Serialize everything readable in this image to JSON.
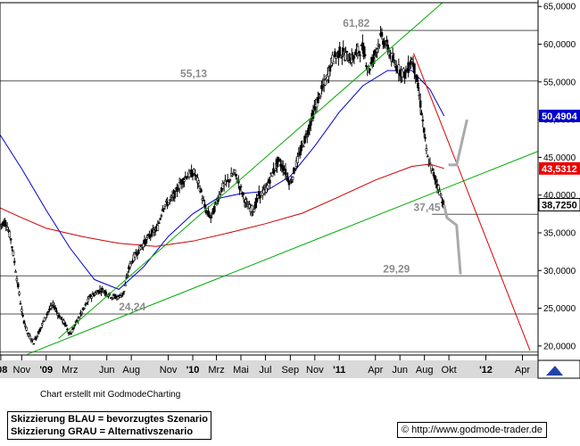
{
  "chart_data": {
    "type": "line",
    "title": "",
    "xlabel": "",
    "ylabel": "",
    "ylim": [
      18800,
      65500
    ],
    "xlim": [
      "2008-09-08",
      "2012-05-10"
    ],
    "y_axis_side": "right",
    "y_ticks": [
      "65,0000",
      "60,0000",
      "55,0000",
      "50,0000",
      "45,0000",
      "40,0000",
      "35,0000",
      "30,0000",
      "25,0000",
      "20,0000"
    ],
    "y_tick_values": [
      65000,
      60000,
      55000,
      50000,
      45000,
      40000,
      35000,
      30000,
      25000,
      20000
    ],
    "x_tick_labels": [
      {
        "label": "'08",
        "date": "2008-09-10",
        "bold": true
      },
      {
        "label": "Nov",
        "date": "2008-11-01"
      },
      {
        "label": "'09",
        "date": "2009-01-01",
        "bold": true
      },
      {
        "label": "Mrz",
        "date": "2009-03-01"
      },
      {
        "label": "Jun",
        "date": "2009-06-01"
      },
      {
        "label": "Aug",
        "date": "2009-08-01"
      },
      {
        "label": "Nov",
        "date": "2009-11-01"
      },
      {
        "label": "'10",
        "date": "2010-01-01",
        "bold": true
      },
      {
        "label": "Mrz",
        "date": "2010-03-01"
      },
      {
        "label": "Mai",
        "date": "2010-05-01"
      },
      {
        "label": "Jul",
        "date": "2010-07-01"
      },
      {
        "label": "Sep",
        "date": "2010-09-01"
      },
      {
        "label": "Nov",
        "date": "2010-11-01"
      },
      {
        "label": "'11",
        "date": "2011-01-01",
        "bold": true
      },
      {
        "label": "Apr",
        "date": "2011-04-01"
      },
      {
        "label": "Jun",
        "date": "2011-06-01"
      },
      {
        "label": "Aug",
        "date": "2011-08-01"
      },
      {
        "label": "Okt",
        "date": "2011-10-01"
      },
      {
        "label": "'12",
        "date": "2012-01-01",
        "bold": true
      },
      {
        "label": "Apr",
        "date": "2012-04-01"
      }
    ],
    "horizontal_levels": [
      {
        "label": "61,82",
        "value": 61820
      },
      {
        "label": "55,13",
        "value": 55130
      },
      {
        "label": "37,45",
        "value": 37450
      },
      {
        "label": "29,29",
        "value": 29290
      },
      {
        "label": "24,24",
        "value": 24240
      },
      {
        "label": "",
        "value": 19200
      }
    ],
    "price_tags": [
      {
        "label": "50,4904",
        "value": 50490,
        "color": "#0000cc"
      },
      {
        "label": "43,5312",
        "value": 43531,
        "color": "#ee0000"
      },
      {
        "label": "38,7250",
        "value": 38725,
        "color": "#000000"
      }
    ],
    "price_points": [
      [
        "2008-09-08",
        36000
      ],
      [
        "2008-09-22",
        36500
      ],
      [
        "2008-10-06",
        34000
      ],
      [
        "2008-10-20",
        29000
      ],
      [
        "2008-11-03",
        24000
      ],
      [
        "2008-11-17",
        21500
      ],
      [
        "2008-12-01",
        20500
      ],
      [
        "2008-12-15",
        22000
      ],
      [
        "2009-01-05",
        24500
      ],
      [
        "2009-01-19",
        25500
      ],
      [
        "2009-02-02",
        24000
      ],
      [
        "2009-02-16",
        23000
      ],
      [
        "2009-03-02",
        21500
      ],
      [
        "2009-03-16",
        23000
      ],
      [
        "2009-04-06",
        25000
      ],
      [
        "2009-04-20",
        26500
      ],
      [
        "2009-05-04",
        27000
      ],
      [
        "2009-05-18",
        27500
      ],
      [
        "2009-06-01",
        27000
      ],
      [
        "2009-06-15",
        26500
      ],
      [
        "2009-07-01",
        26500
      ],
      [
        "2009-07-13",
        27000
      ],
      [
        "2009-07-27",
        30500
      ],
      [
        "2009-08-10",
        32000
      ],
      [
        "2009-08-24",
        33000
      ],
      [
        "2009-09-07",
        34000
      ],
      [
        "2009-09-21",
        35000
      ],
      [
        "2009-10-05",
        35500
      ],
      [
        "2009-10-19",
        38500
      ],
      [
        "2009-11-02",
        39000
      ],
      [
        "2009-11-16",
        40000
      ],
      [
        "2009-12-01",
        41500
      ],
      [
        "2009-12-15",
        42500
      ],
      [
        "2010-01-05",
        43000
      ],
      [
        "2010-01-19",
        41000
      ],
      [
        "2010-02-02",
        38000
      ],
      [
        "2010-02-16",
        37000
      ],
      [
        "2010-03-01",
        39000
      ],
      [
        "2010-03-15",
        41000
      ],
      [
        "2010-04-01",
        42000
      ],
      [
        "2010-04-15",
        43000
      ],
      [
        "2010-05-03",
        40500
      ],
      [
        "2010-05-17",
        38500
      ],
      [
        "2010-06-01",
        38000
      ],
      [
        "2010-06-15",
        40000
      ],
      [
        "2010-07-01",
        40500
      ],
      [
        "2010-07-15",
        42500
      ],
      [
        "2010-08-02",
        44500
      ],
      [
        "2010-08-16",
        43500
      ],
      [
        "2010-09-01",
        41500
      ],
      [
        "2010-09-15",
        44000
      ],
      [
        "2010-10-01",
        46500
      ],
      [
        "2010-10-15",
        48500
      ],
      [
        "2010-11-01",
        51500
      ],
      [
        "2010-11-15",
        53500
      ],
      [
        "2010-12-01",
        55500
      ],
      [
        "2010-12-15",
        58000
      ],
      [
        "2011-01-03",
        59000
      ],
      [
        "2011-01-17",
        58500
      ],
      [
        "2011-02-01",
        58000
      ],
      [
        "2011-02-15",
        59000
      ],
      [
        "2011-03-01",
        59500
      ],
      [
        "2011-03-15",
        56500
      ],
      [
        "2011-04-01",
        59000
      ],
      [
        "2011-04-15",
        61000
      ],
      [
        "2011-05-02",
        59500
      ],
      [
        "2011-05-16",
        57500
      ],
      [
        "2011-06-01",
        56500
      ],
      [
        "2011-06-15",
        56000
      ],
      [
        "2011-07-01",
        58000
      ],
      [
        "2011-07-11",
        56000
      ],
      [
        "2011-07-25",
        51000
      ],
      [
        "2011-08-08",
        45000
      ],
      [
        "2011-08-22",
        43000
      ],
      [
        "2011-09-05",
        41000
      ],
      [
        "2011-09-19",
        38500
      ]
    ],
    "series": [
      {
        "name": "",
        "color": "#0000cc",
        "points": [
          [
            "2008-09-08",
            48000
          ],
          [
            "2008-11-01",
            43500
          ],
          [
            "2009-01-01",
            38000
          ],
          [
            "2009-03-01",
            33000
          ],
          [
            "2009-05-01",
            28800
          ],
          [
            "2009-07-01",
            27500
          ],
          [
            "2009-09-01",
            30500
          ],
          [
            "2009-11-01",
            34500
          ],
          [
            "2010-01-01",
            37500
          ],
          [
            "2010-03-01",
            39500
          ],
          [
            "2010-05-01",
            40200
          ],
          [
            "2010-07-01",
            40500
          ],
          [
            "2010-09-01",
            42500
          ],
          [
            "2010-11-01",
            46500
          ],
          [
            "2011-01-01",
            51000
          ],
          [
            "2011-03-01",
            54500
          ],
          [
            "2011-05-01",
            56500
          ],
          [
            "2011-07-01",
            56500
          ],
          [
            "2011-08-15",
            54000
          ],
          [
            "2011-09-19",
            50490
          ]
        ]
      },
      {
        "name": "",
        "color": "#cc0000",
        "points": [
          [
            "2008-09-08",
            38300
          ],
          [
            "2008-11-01",
            37000
          ],
          [
            "2009-01-01",
            35600
          ],
          [
            "2009-04-01",
            34500
          ],
          [
            "2009-07-01",
            33600
          ],
          [
            "2009-10-01",
            33200
          ],
          [
            "2010-01-01",
            33900
          ],
          [
            "2010-04-01",
            35000
          ],
          [
            "2010-07-01",
            36200
          ],
          [
            "2010-10-01",
            37600
          ],
          [
            "2011-01-01",
            39800
          ],
          [
            "2011-04-01",
            42000
          ],
          [
            "2011-07-01",
            43800
          ],
          [
            "2011-08-15",
            44100
          ],
          [
            "2011-09-19",
            43531
          ]
        ]
      }
    ],
    "trendlines": [
      {
        "color": "#00aa00",
        "from": [
          "2008-11-15",
          18900
        ],
        "to": [
          "2012-05-10",
          45800
        ]
      },
      {
        "color": "#00aa00",
        "from": [
          "2009-02-01",
          21000
        ],
        "to": [
          "2011-09-15",
          65500
        ]
      },
      {
        "color": "#dd0000",
        "from": [
          "2011-07-05",
          58800
        ],
        "to": [
          "2012-04-20",
          19400
        ]
      }
    ],
    "scenarios": [
      {
        "name": "Skizzierung BLAU = bevorzugtes Szenario",
        "color": "#aaaaaa",
        "points": [
          [
            "2011-09-19",
            38725
          ],
          [
            "2011-09-26",
            37000
          ],
          [
            "2011-10-20",
            36000
          ],
          [
            "2011-10-30",
            29500
          ]
        ]
      },
      {
        "name": "Skizzierung GRAU = Alternativszenario",
        "color": "#aaaaaa",
        "points": [
          [
            "2011-09-30",
            44000
          ],
          [
            "2011-10-20",
            44000
          ],
          [
            "2011-11-15",
            50000
          ]
        ]
      }
    ]
  },
  "footer": {
    "credit": "Chart erstellt mit GodmodeCharting",
    "legend_line1": "Skizzierung BLAU = bevorzugtes Szenario",
    "legend_line2": "Skizzierung GRAU = Alternativszenario",
    "url": "http://www.godmode-trader.de"
  }
}
